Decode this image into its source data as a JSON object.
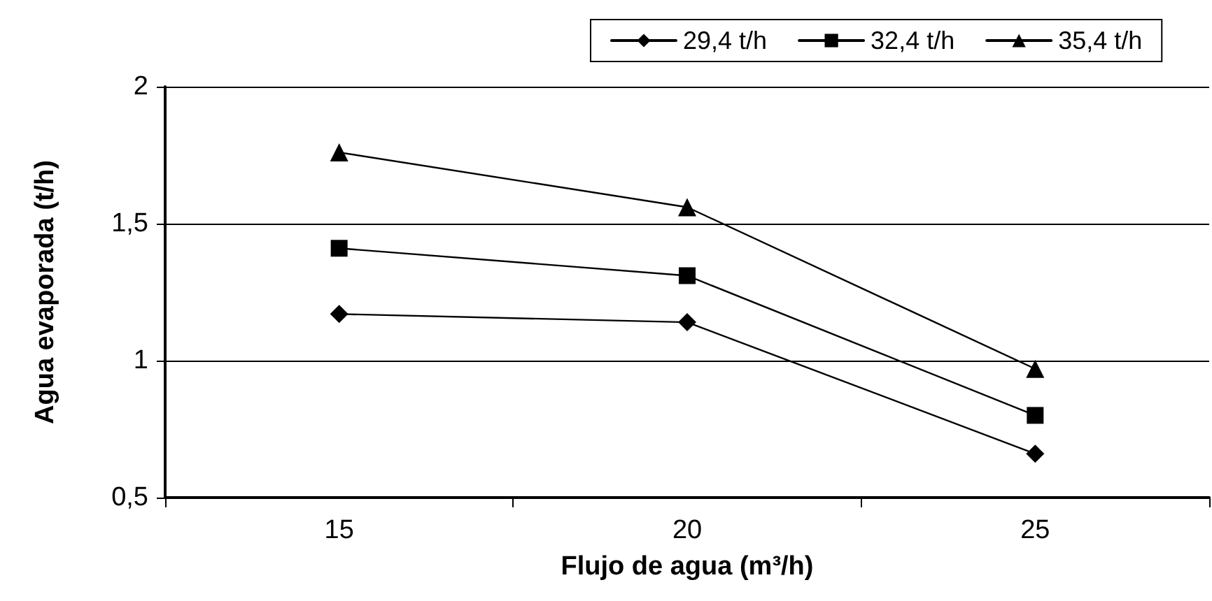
{
  "chart_data": {
    "type": "line",
    "xlabel": "Flujo de agua (m³/h)",
    "ylabel": "Agua evaporada (t/h)",
    "categories": [
      "15",
      "20",
      "25"
    ],
    "series": [
      {
        "name": "29,4 t/h",
        "color": "#000000",
        "marker": "diamond",
        "values": [
          1.17,
          1.14,
          0.66
        ]
      },
      {
        "name": "32,4 t/h",
        "color": "#000000",
        "marker": "square",
        "values": [
          1.41,
          1.31,
          0.8
        ]
      },
      {
        "name": "35,4 t/h",
        "color": "#000000",
        "marker": "triangle",
        "values": [
          1.76,
          1.56,
          0.97
        ]
      }
    ],
    "ylim": [
      0.5,
      2
    ],
    "yticks": [
      {
        "value": 0.5,
        "label": "0,5"
      },
      1,
      {
        "value": 1.5,
        "label": "1,5"
      },
      2
    ],
    "grid": "y",
    "legend": "top",
    "line_style": "solid"
  }
}
